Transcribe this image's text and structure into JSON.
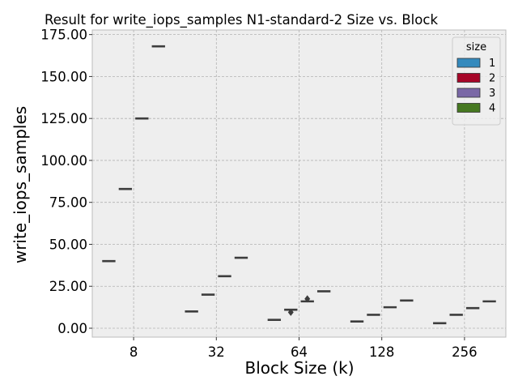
{
  "chart_data": {
    "type": "box",
    "title": "Result for write_iops_samples N1-standard-2 Size vs. Block",
    "xlabel": "Block Size (k)",
    "ylabel": "write_iops_samples",
    "categories": [
      "8",
      "32",
      "64",
      "128",
      "256"
    ],
    "ylim": [
      -5,
      177
    ],
    "yticks": [
      "0.00",
      "25.00",
      "50.00",
      "75.00",
      "100.00",
      "125.00",
      "150.00",
      "175.00"
    ],
    "grid": true,
    "legend": {
      "title": "size",
      "placement": "top-right"
    },
    "series": [
      {
        "name": "1",
        "color": "#348abd",
        "values": [
          40,
          10,
          5,
          4,
          3
        ],
        "outliers": [
          null,
          null,
          null,
          null,
          null
        ]
      },
      {
        "name": "2",
        "color": "#a60628",
        "values": [
          83,
          20,
          11,
          8,
          8
        ],
        "outliers": [
          null,
          null,
          9.5,
          null,
          null
        ]
      },
      {
        "name": "3",
        "color": "#7a68a6",
        "values": [
          125,
          31,
          16,
          12.5,
          12
        ],
        "outliers": [
          null,
          null,
          17.5,
          null,
          null
        ]
      },
      {
        "name": "4",
        "color": "#467821",
        "values": [
          168,
          42,
          22,
          16.5,
          16
        ],
        "outliers": [
          null,
          null,
          null,
          null,
          null
        ]
      }
    ]
  }
}
